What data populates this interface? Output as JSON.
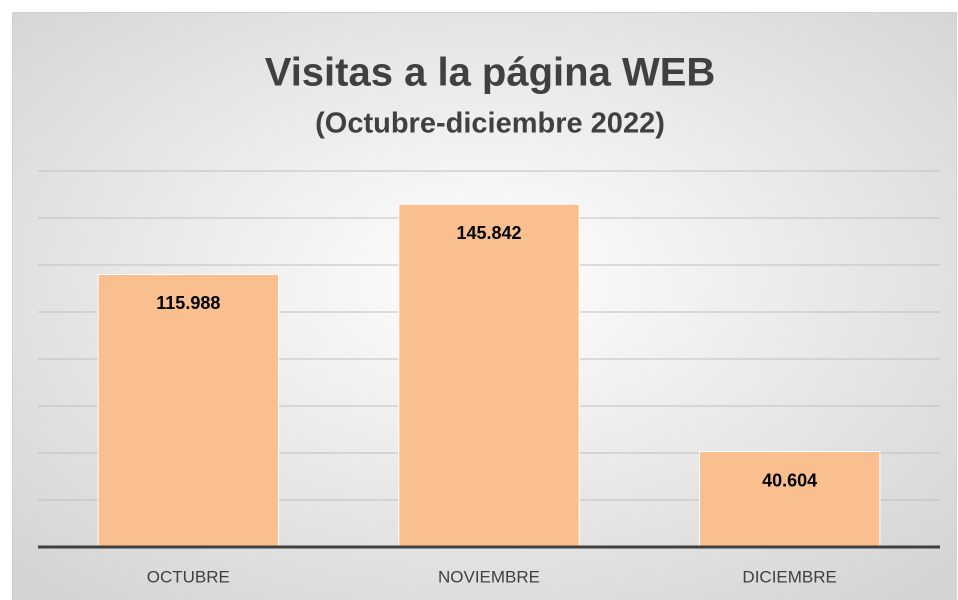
{
  "chart_data": {
    "type": "bar",
    "title": "Visitas a la página WEB",
    "subtitle": "(Octubre-diciembre 2022)",
    "categories": [
      "OCTUBRE",
      "NOVIEMBRE",
      "DICIEMBRE"
    ],
    "values": [
      115988,
      145842,
      40604
    ],
    "value_labels": [
      "115.988",
      "145.842",
      "40.604"
    ],
    "color": "#f9bf8f",
    "ylim": [
      0,
      160000
    ],
    "yticks": [
      0,
      20000,
      40000,
      60000,
      80000,
      100000,
      120000,
      140000,
      160000
    ],
    "grid": true
  }
}
